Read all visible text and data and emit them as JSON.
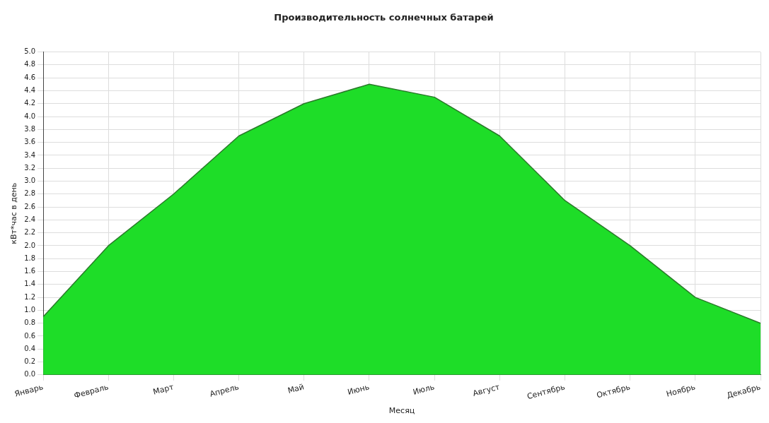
{
  "chart_data": {
    "type": "area",
    "title": "Производительность солнечных батарей",
    "xlabel": "Месяц",
    "ylabel": "кВт*час в день",
    "categories": [
      "Январь",
      "Февраль",
      "Март",
      "Апрель",
      "Май",
      "Июнь",
      "Июль",
      "Август",
      "Сентябрь",
      "Октябрь",
      "Ноябрь",
      "Декабрь"
    ],
    "series": [
      {
        "color": "#1edd28",
        "values": [
          0.9,
          2.0,
          2.8,
          3.7,
          4.2,
          4.5,
          4.3,
          3.7,
          2.7,
          2.0,
          1.2,
          0.8
        ]
      }
    ],
    "ylim": [
      0,
      5
    ],
    "yticks": [
      {
        "value": 0,
        "label": "0.0"
      },
      0.2,
      0.4,
      0.6,
      0.8,
      {
        "value": 1,
        "label": "1.0"
      },
      1.2,
      1.4,
      1.6,
      1.8,
      {
        "value": 2,
        "label": "2.0"
      },
      2.2,
      2.4,
      2.6,
      2.8,
      {
        "value": 3,
        "label": "3.0"
      },
      3.2,
      3.4,
      3.6,
      3.8,
      {
        "value": 4,
        "label": "4.0"
      },
      4.2,
      4.4,
      4.6,
      4.8,
      {
        "value": 5,
        "label": "5.0"
      }
    ],
    "grid": true,
    "legend": false,
    "marker": "none",
    "line_style": "solid"
  }
}
